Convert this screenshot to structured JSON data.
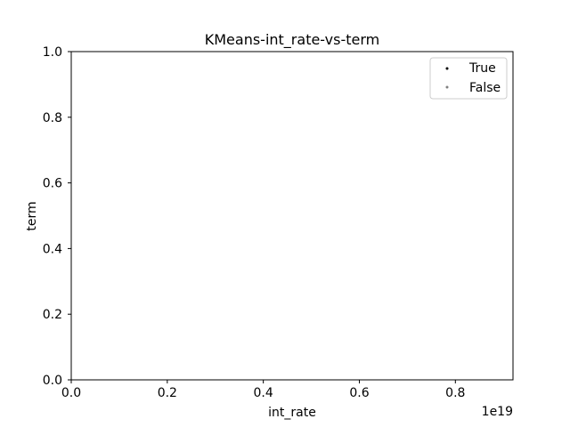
{
  "chart_data": {
    "type": "scatter",
    "title": "KMeans-int_rate-vs-term",
    "xlabel": "int_rate",
    "ylabel": "term",
    "x_offset_text": "1e19",
    "xlim": [
      0,
      0.92
    ],
    "ylim": [
      0,
      1.0
    ],
    "xticks": [
      {
        "value": 0.0,
        "label": "0.0"
      },
      {
        "value": 0.2,
        "label": "0.2"
      },
      {
        "value": 0.4,
        "label": "0.4"
      },
      {
        "value": 0.6,
        "label": "0.6"
      },
      {
        "value": 0.8,
        "label": "0.8"
      }
    ],
    "yticks": [
      {
        "value": 0.0,
        "label": "0.0"
      },
      {
        "value": 0.2,
        "label": "0.2"
      },
      {
        "value": 0.4,
        "label": "0.4"
      },
      {
        "value": 0.6,
        "label": "0.6"
      },
      {
        "value": 0.8,
        "label": "0.8"
      },
      {
        "value": 1.0,
        "label": "1.0"
      }
    ],
    "grid": false,
    "legend_position": "top-right",
    "series": [
      {
        "name": "True",
        "color": "#000000",
        "points": []
      },
      {
        "name": "False",
        "color": "#808080",
        "points": []
      }
    ]
  }
}
